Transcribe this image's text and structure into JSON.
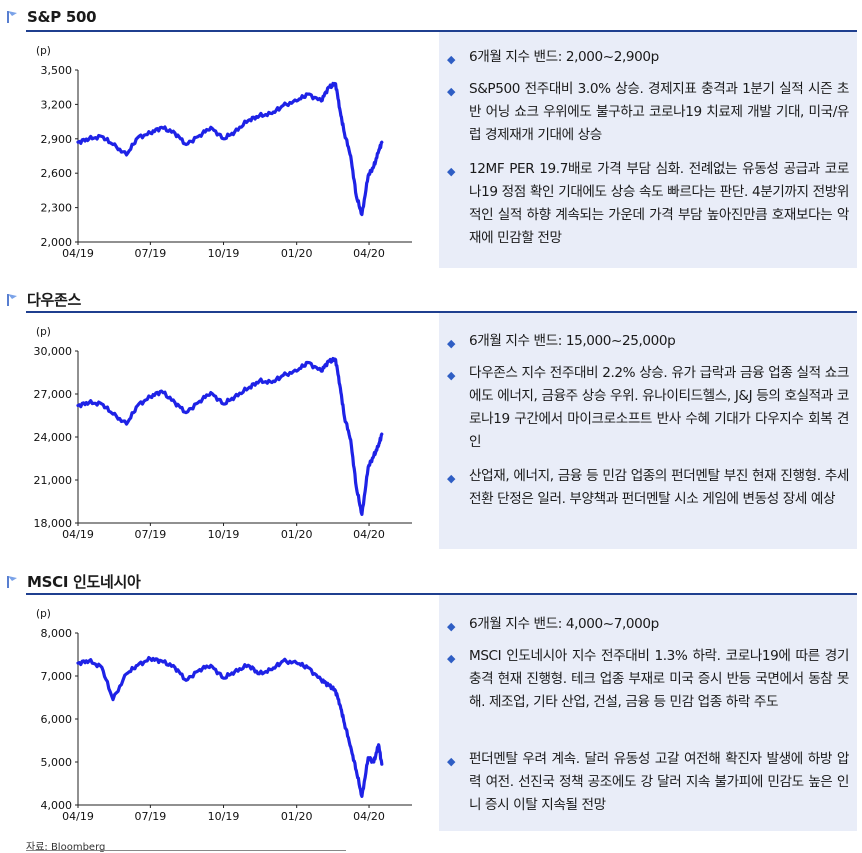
{
  "colors": {
    "line": "#1e22e6",
    "rule": "#1f3f8f",
    "panel": "#e9edf8",
    "bullet": "#2f5ec4"
  },
  "icons": {
    "section": "flag-icon",
    "bullet": "diamond-bullet-icon"
  },
  "sections": [
    {
      "title": "S&P 500",
      "notes": [
        "6개월 지수 밴드: 2,000~2,900p",
        "S&P500 전주대비 3.0% 상승. 경제지표 충격과 1분기 실적 시즌 초반 어닝 쇼크 우위에도 불구하고 코로나19 치료제 개발 기대, 미국/유럽 경제재개 기대에 상승",
        "12MF PER 19.7배로 가격 부담 심화. 전례없는 유동성 공급과 코로나19 정점 확인 기대에도 상승 속도 빠르다는 판단. 4분기까지 전방위적인 실적 하향 계속되는 가운데 가격 부담 높아진만큼 호재보다는 악재에 민감할 전망"
      ]
    },
    {
      "title": "다우존스",
      "notes": [
        "6개월 지수 밴드: 15,000~25,000p",
        "다우존스 지수 전주대비 2.2% 상승. 유가 급락과 금융 업종 실적 쇼크에도 에너지, 금융주 상승 우위. 유나이티드헬스, J&J 등의 호실적과 코로나19 구간에서 마이크로소프트 반사 수혜 기대가 다우지수 회복 견인",
        "산업재, 에너지, 금융 등 민감 업종의 펀더멘탈 부진 현재 진행형. 추세전환 단정은 일러. 부양책과 펀더멘탈 시소 게임에 변동성 장세 예상"
      ]
    },
    {
      "title": "MSCI 인도네시아",
      "notes": [
        "6개월 지수 밴드: 4,000~7,000p",
        "MSCI 인도네시아 지수 전주대비 1.3% 하락. 코로나19에 따른 경기 충격 현재 진행형. 테크 업종 부재로 미국 증시 반등 국면에서 동참 못해. 제조업, 기타 산업, 건설, 금융 등 민감 업종 하락 주도",
        "펀더멘탈 우려 계속. 달러 유동성 고갈 여전해 확진자 발생에 하방 압력 여전. 선진국 정책 공조에도 강 달러 지속 불가피에 민감도 높은 인니 증시 이탈 지속될 전망"
      ]
    }
  ],
  "source": "자료: Bloomberg",
  "chart_data": [
    {
      "type": "line",
      "unit": "(p)",
      "ylim": [
        2000,
        3500
      ],
      "yticks": [
        "3,500",
        "3,200",
        "2,900",
        "2,600",
        "2,300",
        "2,000"
      ],
      "ytick_values": [
        3500,
        3200,
        2900,
        2600,
        2300,
        2000
      ],
      "xticks": [
        "04/19",
        "07/19",
        "10/19",
        "01/20",
        "04/20"
      ],
      "x": [
        "2019-04-01",
        "2019-04-15",
        "2019-05-01",
        "2019-05-15",
        "2019-06-01",
        "2019-06-15",
        "2019-07-01",
        "2019-07-15",
        "2019-08-01",
        "2019-08-15",
        "2019-09-01",
        "2019-09-15",
        "2019-10-01",
        "2019-10-15",
        "2019-11-01",
        "2019-11-15",
        "2019-12-01",
        "2019-12-15",
        "2020-01-01",
        "2020-01-15",
        "2020-02-01",
        "2020-02-10",
        "2020-02-19",
        "2020-02-25",
        "2020-03-01",
        "2020-03-09",
        "2020-03-16",
        "2020-03-23",
        "2020-03-31",
        "2020-04-07",
        "2020-04-13",
        "2020-04-17"
      ],
      "series": [
        {
          "values": [
            2870,
            2900,
            2920,
            2850,
            2760,
            2910,
            2950,
            3000,
            2950,
            2850,
            2930,
            3000,
            2900,
            2960,
            3060,
            3100,
            3120,
            3190,
            3230,
            3290,
            3230,
            3350,
            3380,
            3130,
            2950,
            2750,
            2400,
            2240,
            2580,
            2660,
            2790,
            2870
          ]
        }
      ]
    },
    {
      "type": "line",
      "unit": "(p)",
      "ylim": [
        18000,
        30000
      ],
      "yticks": [
        "30,000",
        "27,000",
        "24,000",
        "21,000",
        "18,000"
      ],
      "ytick_values": [
        30000,
        27000,
        24000,
        21000,
        18000
      ],
      "xticks": [
        "04/19",
        "07/19",
        "10/19",
        "01/20",
        "04/20"
      ],
      "x": [
        "2019-04-01",
        "2019-04-15",
        "2019-05-01",
        "2019-05-15",
        "2019-06-01",
        "2019-06-15",
        "2019-07-01",
        "2019-07-15",
        "2019-08-01",
        "2019-08-15",
        "2019-09-01",
        "2019-09-15",
        "2019-10-01",
        "2019-10-15",
        "2019-11-01",
        "2019-11-15",
        "2019-12-01",
        "2019-12-15",
        "2020-01-01",
        "2020-01-15",
        "2020-02-01",
        "2020-02-10",
        "2020-02-19",
        "2020-02-25",
        "2020-03-01",
        "2020-03-09",
        "2020-03-16",
        "2020-03-23",
        "2020-03-31",
        "2020-04-07",
        "2020-04-13",
        "2020-04-17"
      ],
      "series": [
        {
          "values": [
            26200,
            26400,
            26300,
            25600,
            24900,
            26200,
            26800,
            27200,
            26400,
            25700,
            26500,
            27100,
            26300,
            26800,
            27400,
            27900,
            27800,
            28300,
            28600,
            29200,
            28600,
            29300,
            29400,
            27400,
            25400,
            23800,
            20500,
            18600,
            21900,
            22700,
            23400,
            24200
          ]
        }
      ]
    },
    {
      "type": "line",
      "unit": "(p)",
      "ylim": [
        4000,
        8000
      ],
      "yticks": [
        "8,000",
        "7,000",
        "6,000",
        "5,000",
        "4,000"
      ],
      "ytick_values": [
        8000,
        7000,
        6000,
        5000,
        4000
      ],
      "xticks": [
        "04/19",
        "07/19",
        "10/19",
        "01/20",
        "04/20"
      ],
      "x": [
        "2019-04-01",
        "2019-04-15",
        "2019-05-01",
        "2019-05-15",
        "2019-06-01",
        "2019-06-15",
        "2019-07-01",
        "2019-07-15",
        "2019-08-01",
        "2019-08-15",
        "2019-09-01",
        "2019-09-15",
        "2019-10-01",
        "2019-10-15",
        "2019-11-01",
        "2019-11-15",
        "2019-12-01",
        "2019-12-15",
        "2020-01-01",
        "2020-01-15",
        "2020-02-01",
        "2020-02-10",
        "2020-02-19",
        "2020-02-25",
        "2020-03-01",
        "2020-03-09",
        "2020-03-16",
        "2020-03-23",
        "2020-03-31",
        "2020-04-07",
        "2020-04-13",
        "2020-04-17"
      ],
      "series": [
        {
          "values": [
            7300,
            7350,
            7200,
            6450,
            7050,
            7250,
            7400,
            7350,
            7200,
            6900,
            7150,
            7250,
            6950,
            7100,
            7250,
            7050,
            7150,
            7350,
            7300,
            7200,
            6900,
            6800,
            6650,
            6300,
            5900,
            5350,
            4800,
            4200,
            5100,
            5000,
            5400,
            4950
          ]
        }
      ]
    }
  ]
}
